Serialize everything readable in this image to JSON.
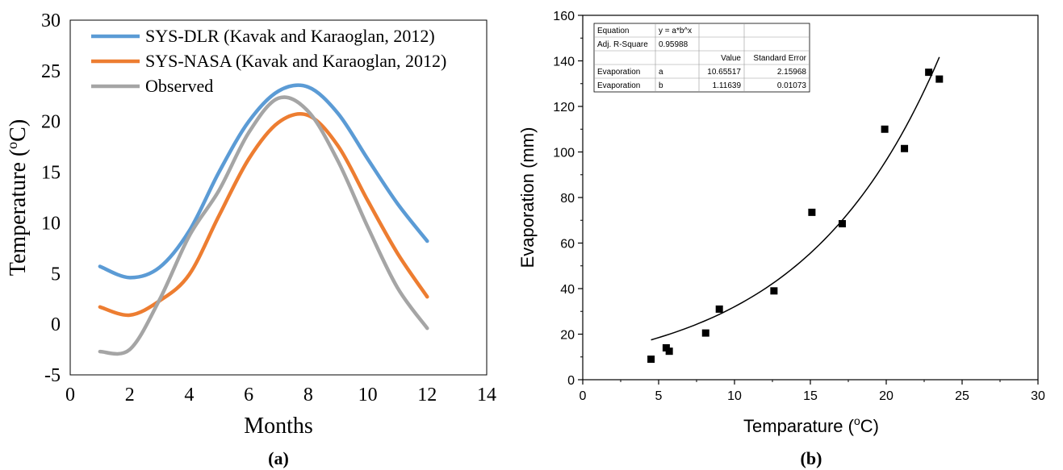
{
  "chart_data": [
    {
      "type": "line",
      "panel_label": "(a)",
      "xlabel": "Months",
      "ylabel_prefix": "Temperature (",
      "ylabel_sup": "o",
      "ylabel_suffix": "C)",
      "xlim": [
        0,
        14
      ],
      "ylim": [
        -5,
        30
      ],
      "xticks": [
        0,
        2,
        4,
        6,
        8,
        10,
        12,
        14
      ],
      "yticks": [
        -5,
        0,
        5,
        10,
        15,
        20,
        25,
        30
      ],
      "legend_position": "top-left",
      "grid": false,
      "series": [
        {
          "name": "SYS-DLR (Kavak and Karaoglan, 2012)",
          "color": "#5B9BD5",
          "x": [
            1,
            2,
            3,
            4,
            5,
            6,
            7,
            8,
            9,
            10,
            11,
            12
          ],
          "y": [
            5.7,
            4.6,
            5.6,
            9.2,
            15.0,
            20.0,
            23.0,
            23.4,
            20.8,
            16.3,
            11.9,
            8.2
          ]
        },
        {
          "name": "SYS-NASA (Kavak and Karaoglan, 2012)",
          "color": "#ED7D31",
          "x": [
            1,
            2,
            3,
            4,
            5,
            6,
            7,
            8,
            9,
            10,
            11,
            12
          ],
          "y": [
            1.7,
            0.9,
            2.3,
            4.9,
            10.7,
            16.3,
            19.9,
            20.6,
            17.6,
            12.2,
            7.0,
            2.7
          ]
        },
        {
          "name": "Observed",
          "color": "#A5A5A5",
          "x": [
            1,
            2,
            3,
            4,
            5,
            6,
            7,
            8,
            9,
            10,
            11,
            12
          ],
          "y": [
            -2.7,
            -2.5,
            2.4,
            8.7,
            13.2,
            18.9,
            22.3,
            21.0,
            16.1,
            9.6,
            3.6,
            -0.4
          ]
        }
      ]
    },
    {
      "type": "scatter",
      "panel_label": "(b)",
      "xlabel_prefix": "Temparature (",
      "xlabel_sup": "o",
      "xlabel_suffix": "C)",
      "ylabel": "Evaporation (mm)",
      "xlim": [
        0,
        30
      ],
      "ylim": [
        0,
        160
      ],
      "xticks": [
        0,
        5,
        10,
        15,
        20,
        25,
        30
      ],
      "yticks": [
        0,
        20,
        40,
        60,
        80,
        100,
        120,
        140,
        160
      ],
      "grid": false,
      "points": {
        "x": [
          4.5,
          5.5,
          5.7,
          8.1,
          9.0,
          12.6,
          15.1,
          17.1,
          19.9,
          21.2,
          22.8,
          23.5
        ],
        "y": [
          9,
          14,
          12.5,
          20.5,
          31,
          39,
          73.5,
          68.5,
          110,
          101.5,
          135,
          132
        ]
      },
      "fit": {
        "model": "y = a*b^x",
        "a": 10.65517,
        "b": 1.11639,
        "x_range": [
          4.5,
          23.5
        ]
      },
      "fit_table": {
        "rows": [
          [
            "Equation",
            "y = a*b^x",
            "",
            ""
          ],
          [
            "Adj. R-Square",
            "0.95988",
            "",
            ""
          ],
          [
            "",
            "",
            "Value",
            "Standard Error"
          ],
          [
            "Evaporation",
            "a",
            "10.65517",
            "2.15968"
          ],
          [
            "Evaporation",
            "b",
            "1.11639",
            "0.01073"
          ]
        ]
      }
    }
  ]
}
